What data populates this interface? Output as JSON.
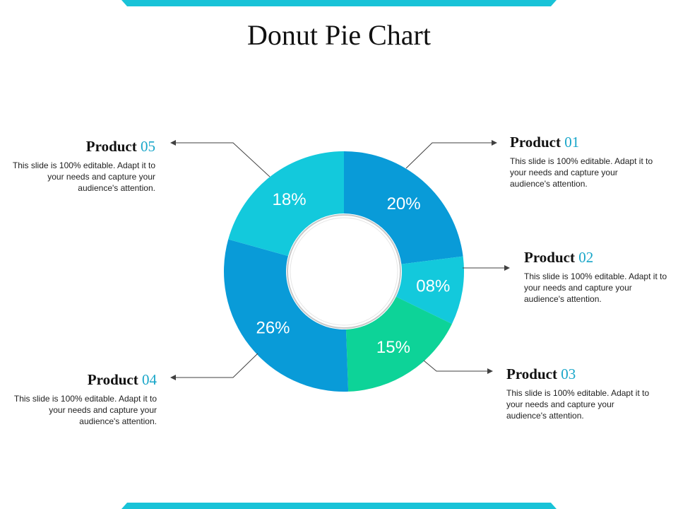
{
  "slide": {
    "title": "Donut Pie Chart",
    "accent_color": "#18a6c9",
    "band_color": "#19c3d8"
  },
  "chart_data": {
    "type": "pie",
    "title": "Donut Pie Chart",
    "donut": true,
    "slices": [
      {
        "label": "Product 01",
        "value": 20,
        "display": "20%",
        "color": "#099bd8"
      },
      {
        "label": "Product 02",
        "value": 8,
        "display": "08%",
        "color": "#13c9dc"
      },
      {
        "label": "Product 03",
        "value": 15,
        "display": "15%",
        "color": "#0dd398"
      },
      {
        "label": "Product 04",
        "value": 26,
        "display": "26%",
        "color": "#099bd8"
      },
      {
        "label": "Product 05",
        "value": 18,
        "display": "18%",
        "color": "#13c9dc"
      }
    ]
  },
  "callouts": [
    {
      "word": "Product",
      "num": "01",
      "text": "This slide is 100% editable. Adapt it to your needs and capture your audience's attention."
    },
    {
      "word": "Product",
      "num": "02",
      "text": "This slide is 100% editable. Adapt it to your needs and capture your audience's attention."
    },
    {
      "word": "Product",
      "num": "03",
      "text": "This slide is 100% editable. Adapt it to your needs and capture your audience's attention."
    },
    {
      "word": "Product",
      "num": "04",
      "text": "This slide is 100% editable. Adapt it to your needs and capture your audience's attention."
    },
    {
      "word": "Product",
      "num": "05",
      "text": "This slide is 100% editable. Adapt it to your needs and capture your audience's attention."
    }
  ]
}
